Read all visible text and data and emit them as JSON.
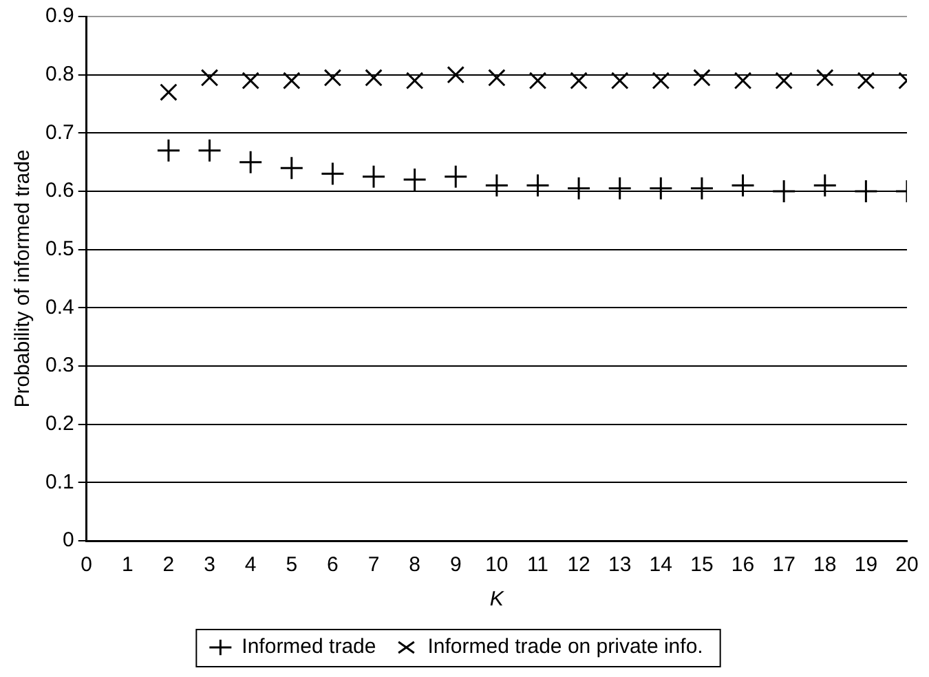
{
  "chart_data": {
    "type": "scatter",
    "xlabel": "K",
    "ylabel": "Probability of informed trade",
    "x": [
      2,
      3,
      4,
      5,
      6,
      7,
      8,
      9,
      10,
      11,
      12,
      13,
      14,
      15,
      16,
      17,
      18,
      19,
      20
    ],
    "series": [
      {
        "name": "Informed trade",
        "color": "#000000",
        "marker": "cross",
        "values": [
          0.67,
          0.67,
          0.65,
          0.64,
          0.63,
          0.625,
          0.62,
          0.625,
          0.61,
          0.61,
          0.605,
          0.605,
          0.605,
          0.605,
          0.61,
          0.6,
          0.61,
          0.6,
          0.6
        ]
      },
      {
        "name": "Informed trade on private info.",
        "color": "#000000",
        "marker": "x",
        "values": [
          0.77,
          0.795,
          0.79,
          0.79,
          0.795,
          0.795,
          0.79,
          0.8,
          0.795,
          0.79,
          0.79,
          0.79,
          0.79,
          0.795,
          0.79,
          0.79,
          0.795,
          0.79,
          0.79
        ]
      }
    ],
    "xlim": [
      0,
      20
    ],
    "xticks": [
      0,
      1,
      2,
      3,
      4,
      5,
      6,
      7,
      8,
      9,
      10,
      11,
      12,
      13,
      14,
      15,
      16,
      17,
      18,
      19,
      20
    ],
    "ylim": [
      0,
      0.9
    ],
    "yticks": [
      0,
      0.1,
      0.2,
      0.3,
      0.4,
      0.5,
      0.6,
      0.7,
      0.8,
      0.9
    ],
    "grid": "y",
    "legend": "bottom"
  }
}
